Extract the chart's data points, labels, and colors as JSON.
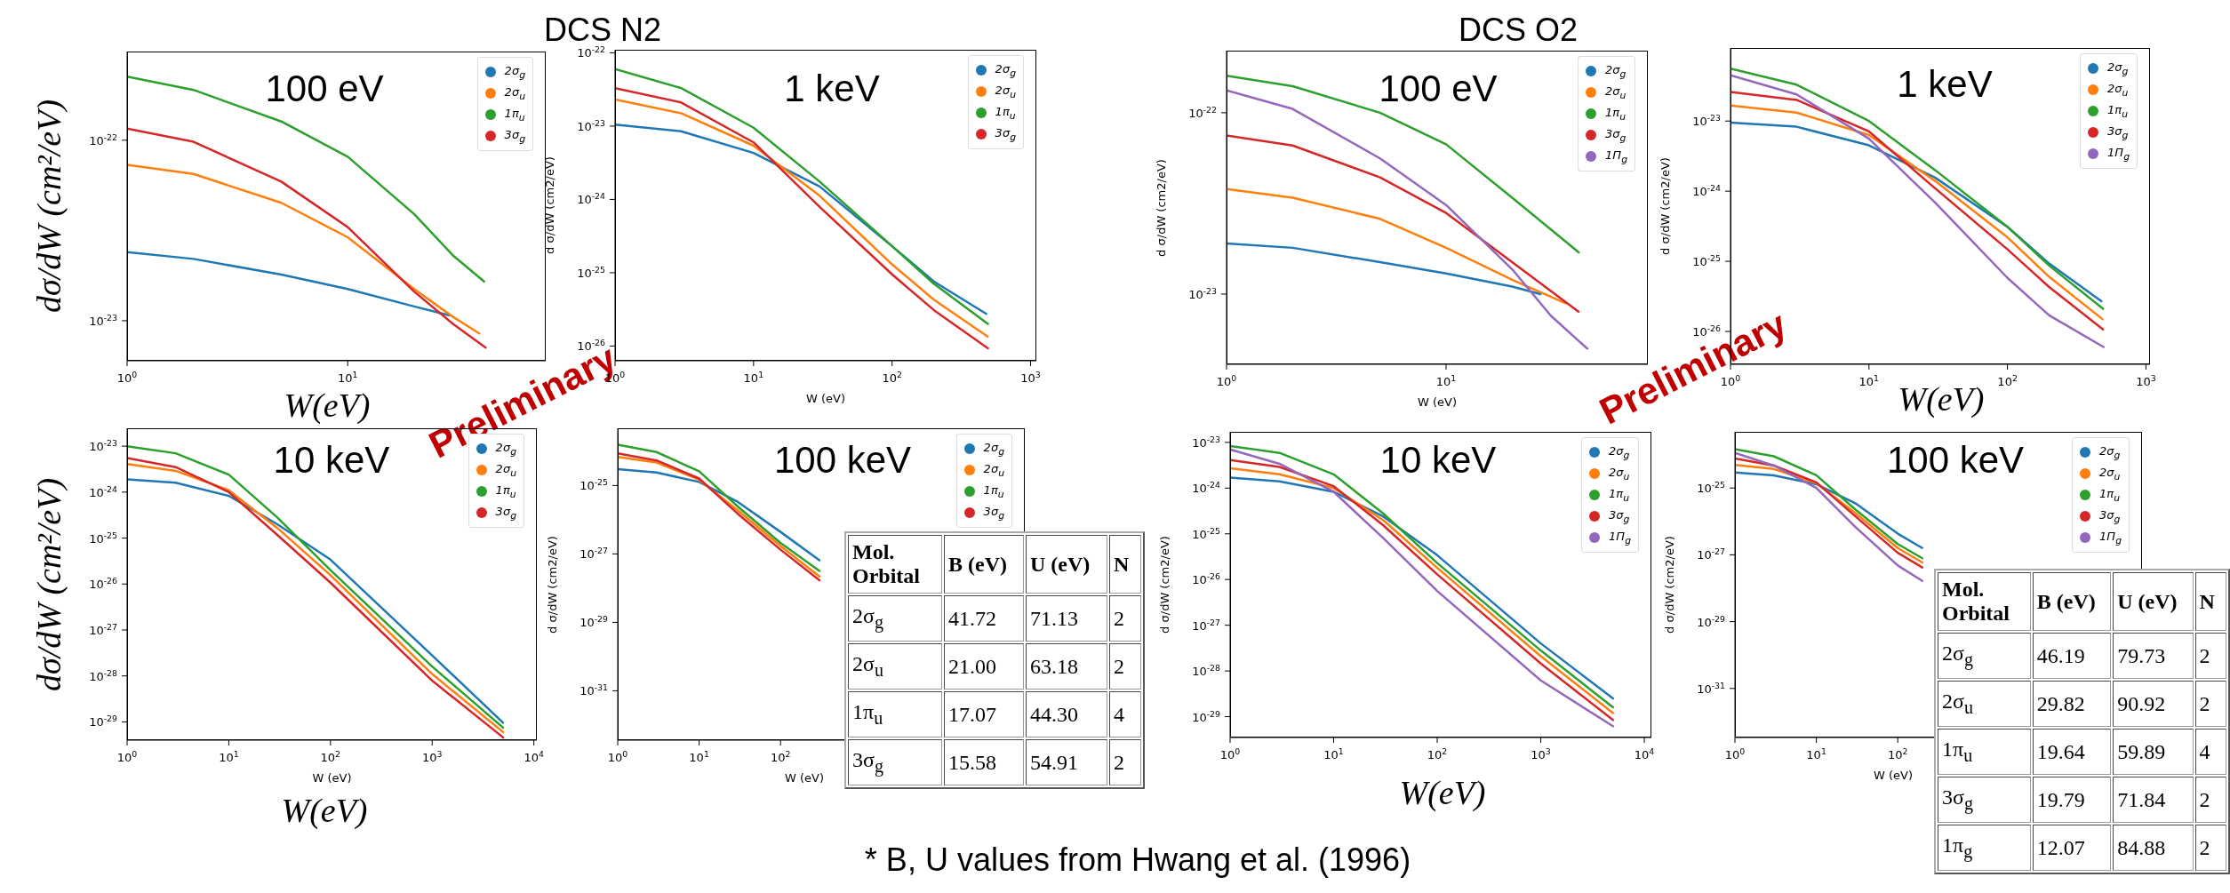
{
  "chart_data": [
    {
      "type": "line",
      "title": "100 eV",
      "xlabel": "W(eV)",
      "ylabel": "dσ/dW (cm²/eV)",
      "log": "xy",
      "legend": "top right",
      "annotations": [
        "DCS N2",
        "Preliminary"
      ],
      "xlim": [
        1,
        79
      ],
      "xticks": [
        {
          "value": 1,
          "label": "10$^{0}$"
        },
        {
          "value": 10,
          "label": "10$^{1}$"
        }
      ],
      "ylim": [
        6e-24,
        3.1e-22
      ],
      "yticks": [
        {
          "value": 1e-22,
          "label": "10$^{-22}$"
        },
        {
          "value": 1e-23,
          "label": "10$^{-23}$"
        }
      ],
      "series": [
        {
          "name": "2σ$_{g}$",
          "color": "#1f77b4",
          "x": [
            1,
            2,
            5,
            10,
            20,
            29
          ],
          "values": [
            2.4e-23,
            2.2e-23,
            1.8e-23,
            1.5e-23,
            1.2e-23,
            1.07e-23
          ]
        },
        {
          "name": "2σ$_{u}$",
          "color": "#ff7f0e",
          "x": [
            1,
            2,
            5,
            10,
            20,
            30,
            39.5
          ],
          "values": [
            7.3e-23,
            6.5e-23,
            4.5e-23,
            2.9e-23,
            1.5e-23,
            1.05e-23,
            8.5e-24
          ]
        },
        {
          "name": "1π$_{u}$",
          "color": "#2ca02c",
          "x": [
            1,
            2,
            5,
            10,
            20,
            30,
            41.5
          ],
          "values": [
            2.25e-22,
            1.9e-22,
            1.27e-22,
            8.1e-23,
            3.9e-23,
            2.3e-23,
            1.65e-23
          ]
        },
        {
          "name": "3σ$_{g}$",
          "color": "#d62728",
          "x": [
            1,
            2,
            5,
            10,
            20,
            30,
            42.2
          ],
          "values": [
            1.16e-22,
            9.8e-23,
            5.9e-23,
            3.3e-23,
            1.45e-23,
            9.6e-24,
            7.1e-24
          ]
        }
      ]
    },
    {
      "type": "line",
      "title": "1 keV",
      "xlabel": "W (eV)",
      "ylabel": "d σ/dW (cm2/eV)",
      "log": "xy",
      "legend": "top right",
      "xlim": [
        1,
        1100
      ],
      "xticks": [
        {
          "value": 1,
          "label": "10$^{0}$"
        },
        {
          "value": 10,
          "label": "10$^{1}$"
        },
        {
          "value": 100,
          "label": "10$^{2}$"
        },
        {
          "value": 1000,
          "label": "10$^{3}$"
        }
      ],
      "ylim": [
        6.3e-27,
        1.1e-22
      ],
      "yticks": [
        {
          "value": 1e-22,
          "label": "10$^{-22}$"
        },
        {
          "value": 1e-23,
          "label": "10$^{-23}$"
        },
        {
          "value": 1e-24,
          "label": "10$^{-24}$"
        },
        {
          "value": 1e-25,
          "label": "10$^{-25}$"
        },
        {
          "value": 1e-26,
          "label": "10$^{-26}$"
        }
      ],
      "series": [
        {
          "name": "2σ$_{g}$",
          "color": "#1f77b4",
          "x": [
            1,
            3,
            10,
            30,
            100,
            200,
            479
          ],
          "values": [
            1.05e-23,
            8.5e-24,
            4.3e-24,
            1.5e-24,
            2.3e-25,
            7.6e-26,
            2.75e-26
          ]
        },
        {
          "name": "2σ$_{u}$",
          "color": "#ff7f0e",
          "x": [
            1,
            3,
            10,
            30,
            100,
            200,
            489.5
          ],
          "values": [
            2.3e-23,
            1.5e-23,
            5.4e-24,
            1.12e-24,
            1.3e-25,
            4.3e-26,
            1.35e-26
          ]
        },
        {
          "name": "1π$_{u}$",
          "color": "#2ca02c",
          "x": [
            1,
            3,
            10,
            30,
            100,
            200,
            491.5
          ],
          "values": [
            6e-23,
            3.3e-23,
            9.5e-24,
            1.75e-24,
            2.3e-25,
            7.1e-26,
            2e-26
          ]
        },
        {
          "name": "3σ$_{g}$",
          "color": "#d62728",
          "x": [
            1,
            3,
            10,
            30,
            100,
            200,
            492
          ],
          "values": [
            3.3e-23,
            2.1e-23,
            6e-24,
            7.9e-25,
            9.5e-26,
            3.1e-26,
            9.3e-27
          ]
        }
      ]
    },
    {
      "type": "line",
      "title": "100 eV",
      "xlabel": "W (eV)",
      "ylabel": "d σ/dW (cm2/eV)",
      "log": "xy",
      "legend": "top right",
      "annotations": [
        "DCS O2",
        "Preliminary"
      ],
      "xlim": [
        1,
        83
      ],
      "xticks": [
        {
          "value": 1,
          "label": "10$^{0}$"
        },
        {
          "value": 10,
          "label": "10$^{1}$"
        }
      ],
      "ylim": [
        4.1e-24,
        2.2e-22
      ],
      "yticks": [
        {
          "value": 1e-22,
          "label": "10$^{-22}$"
        },
        {
          "value": 1e-23,
          "label": "10$^{-23}$"
        }
      ],
      "series": [
        {
          "name": "2σ$_{g}$",
          "color": "#1f77b4",
          "x": [
            1,
            2,
            5,
            10,
            20,
            26.9
          ],
          "values": [
            1.9e-23,
            1.8e-23,
            1.5e-23,
            1.3e-23,
            1.1e-23,
            1e-23
          ]
        },
        {
          "name": "2σ$_{u}$",
          "color": "#ff7f0e",
          "x": [
            1,
            2,
            5,
            10,
            20,
            35.1
          ],
          "values": [
            3.8e-23,
            3.4e-23,
            2.6e-23,
            1.8e-23,
            1.2e-23,
            8.9e-24
          ]
        },
        {
          "name": "1π$_{u}$",
          "color": "#2ca02c",
          "x": [
            1,
            2,
            5,
            10,
            20,
            40.2
          ],
          "values": [
            1.6e-22,
            1.4e-22,
            1e-22,
            6.7e-23,
            3.4e-23,
            1.7e-23
          ]
        },
        {
          "name": "3σ$_{g}$",
          "color": "#d62728",
          "x": [
            1,
            2,
            5,
            10,
            20,
            40.1
          ],
          "values": [
            7.5e-23,
            6.6e-23,
            4.4e-23,
            2.8e-23,
            1.5e-23,
            8e-24
          ]
        },
        {
          "name": "1Π$_{g}$",
          "color": "#9467bd",
          "x": [
            1,
            2,
            5,
            10,
            20,
            30,
            44
          ],
          "values": [
            1.33e-22,
            1.05e-22,
            5.6e-23,
            3.1e-23,
            1.37e-23,
            7.6e-24,
            5e-24
          ]
        }
      ]
    },
    {
      "type": "line",
      "title": "1 keV",
      "xlabel": "W(eV)",
      "ylabel": "d σ/dW (cm2/eV)",
      "log": "xy",
      "legend": "top right",
      "xlim": [
        1,
        1070
      ],
      "xticks": [
        {
          "value": 1,
          "label": "10$^{0}$"
        },
        {
          "value": 10,
          "label": "10$^{1}$"
        },
        {
          "value": 100,
          "label": "10$^{2}$"
        },
        {
          "value": 1000,
          "label": "10$^{3}$"
        }
      ],
      "ylim": [
        3.4e-27,
        1.1e-22
      ],
      "yticks": [
        {
          "value": 1e-23,
          "label": "10$^{-23}$"
        },
        {
          "value": 1e-24,
          "label": "10$^{-24}$"
        },
        {
          "value": 1e-25,
          "label": "10$^{-25}$"
        },
        {
          "value": 1e-26,
          "label": "10$^{-26}$"
        }
      ],
      "series": [
        {
          "name": "2σ$_{g}$",
          "color": "#1f77b4",
          "x": [
            1,
            3,
            10,
            30,
            100,
            200,
            477
          ],
          "values": [
            9.5e-24,
            8.3e-24,
            4.5e-24,
            1.56e-24,
            3.1e-25,
            9.3e-26,
            2.7e-26
          ]
        },
        {
          "name": "2σ$_{u}$",
          "color": "#ff7f0e",
          "x": [
            1,
            3,
            10,
            30,
            100,
            200,
            485
          ],
          "values": [
            1.66e-23,
            1.32e-23,
            6.3e-24,
            1.4e-24,
            2.2e-25,
            6e-26,
            1.5e-26
          ]
        },
        {
          "name": "1π$_{u}$",
          "color": "#2ca02c",
          "x": [
            1,
            3,
            10,
            30,
            100,
            200,
            490
          ],
          "values": [
            5.6e-23,
            3.3e-23,
            1e-23,
            2e-24,
            3.1e-25,
            8.7e-26,
            2.1e-26
          ]
        },
        {
          "name": "3σ$_{g}$",
          "color": "#d62728",
          "x": [
            1,
            3,
            10,
            30,
            100,
            200,
            490
          ],
          "values": [
            2.6e-23,
            2e-23,
            7.1e-24,
            1.1e-24,
            1.48e-25,
            4.3e-26,
            1.07e-26
          ]
        },
        {
          "name": "1Π$_{g}$",
          "color": "#9467bd",
          "x": [
            1,
            3,
            10,
            30,
            100,
            200,
            494
          ],
          "values": [
            4.5e-23,
            2.4e-23,
            5.6e-24,
            6.9e-25,
            5.8e-26,
            1.7e-26,
            6e-27
          ]
        }
      ]
    },
    {
      "type": "line",
      "title": "10 keV",
      "xlabel": "W (eV)",
      "ylabel": "dσ/dW (cm²/eV)",
      "log": "xy",
      "legend": "top right",
      "annotations": [
        "W(eV)"
      ],
      "xlim": [
        1,
        10700
      ],
      "xticks": [
        {
          "value": 1,
          "label": "10$^{0}$"
        },
        {
          "value": 10,
          "label": "10$^{1}$"
        },
        {
          "value": 100,
          "label": "10$^{2}$"
        },
        {
          "value": 1000,
          "label": "10$^{3}$"
        },
        {
          "value": 10000,
          "label": "10$^{4}$"
        }
      ],
      "ylim": [
        4e-30,
        2.45e-23
      ],
      "yticks": [
        {
          "value": 1e-23,
          "label": "10$^{-23}$"
        },
        {
          "value": 1e-24,
          "label": "10$^{-24}$"
        },
        {
          "value": 1e-25,
          "label": "10$^{-25}$"
        },
        {
          "value": 1e-26,
          "label": "10$^{-26}$"
        },
        {
          "value": 1e-27,
          "label": "10$^{-27}$"
        },
        {
          "value": 1e-28,
          "label": "10$^{-28}$"
        },
        {
          "value": 1e-29,
          "label": "10$^{-29}$"
        }
      ],
      "series": [
        {
          "name": "2σ$_{g}$",
          "color": "#1f77b4",
          "x": [
            1,
            3,
            10,
            30,
            100,
            1000,
            4980
          ],
          "values": [
            1.9e-24,
            1.6e-24,
            8.3e-25,
            2e-25,
            3.4e-26,
            2.8e-28,
            9.6e-30
          ]
        },
        {
          "name": "2σ$_{u}$",
          "color": "#ff7f0e",
          "x": [
            1,
            3,
            10,
            30,
            100,
            1000,
            4980
          ],
          "values": [
            4.1e-24,
            2.9e-24,
            1.1e-24,
            1.66e-25,
            1.55e-26,
            1.1e-28,
            6e-30
          ]
        },
        {
          "name": "1π$_{u}$",
          "color": "#2ca02c",
          "x": [
            1,
            3,
            10,
            30,
            100,
            1000,
            4980
          ],
          "values": [
            1e-23,
            7e-24,
            2.4e-24,
            2.8e-25,
            2e-26,
            1.6e-28,
            7.5e-30
          ]
        },
        {
          "name": "3σ$_{g}$",
          "color": "#d62728",
          "x": [
            1,
            3,
            10,
            30,
            100,
            1000,
            4980
          ],
          "values": [
            5.5e-24,
            3.5e-24,
            1e-24,
            1.17e-25,
            1.07e-26,
            7.9e-29,
            4.6e-30
          ]
        }
      ]
    },
    {
      "type": "line",
      "title": "100 keV",
      "xlabel": "W (eV)",
      "ylabel": "d σ/dW (cm2/eV)",
      "log": "xy",
      "legend": "top right",
      "xlim": [
        1,
        100000
      ],
      "xticks": [
        {
          "value": 1,
          "label": "10$^{0}$"
        },
        {
          "value": 10,
          "label": "10$^{1}$"
        },
        {
          "value": 100,
          "label": "10$^{2}$"
        }
      ],
      "ylim": [
        3.6e-33,
        4.7e-24
      ],
      "yticks": [
        {
          "value": 1e-25,
          "label": "10$^{-25}$"
        },
        {
          "value": 1e-27,
          "label": "10$^{-27}$"
        },
        {
          "value": 1e-29,
          "label": "10$^{-29}$"
        },
        {
          "value": 1e-31,
          "label": "10$^{-31}$"
        }
      ],
      "series": [
        {
          "name": "2σ$_{g}$",
          "color": "#1f77b4",
          "x": [
            1,
            3,
            10,
            30,
            100,
            300
          ],
          "values": [
            3e-25,
            2.4e-25,
            1.27e-25,
            3.3e-26,
            4.4e-27,
            6.5e-28
          ]
        },
        {
          "name": "2σ$_{u}$",
          "color": "#ff7f0e",
          "x": [
            1,
            3,
            10,
            30,
            100,
            300
          ],
          "values": [
            6.8e-25,
            4.7e-25,
            1.47e-25,
            1.87e-26,
            1.7e-27,
            2.2e-28
          ]
        },
        {
          "name": "1π$_{u}$",
          "color": "#2ca02c",
          "x": [
            1,
            3,
            10,
            30,
            100,
            300
          ],
          "values": [
            1.55e-24,
            9.5e-25,
            2.6e-25,
            2.4e-26,
            2.1e-27,
            3.2e-28
          ]
        },
        {
          "name": "3σ$_{g}$",
          "color": "#d62728",
          "x": [
            1,
            3,
            10,
            30,
            100,
            300
          ],
          "values": [
            8.7e-25,
            5.4e-25,
            1.6e-25,
            1.47e-26,
            1.33e-27,
            1.7e-28
          ]
        }
      ]
    },
    {
      "type": "other",
      "annotations": [
        "* B, U values from Hwang et al. (1996)"
      ],
      "categories": [
        "Mol. Orbital",
        "B (eV)",
        "U (eV)",
        "N"
      ],
      "y_categories": [
        "2σ$_{g}$",
        "2σ$_{u}$",
        "1π$_{u}$",
        "3σ$_{g}$"
      ],
      "cell_labels": [
        [
          "41.72",
          "71.13",
          "2"
        ],
        [
          "21.00",
          "63.18",
          "2"
        ],
        [
          "17.07",
          "44.30",
          "4"
        ],
        [
          "15.58",
          "54.91",
          "2"
        ]
      ]
    },
    {
      "type": "line",
      "title": "10 keV",
      "xlabel": "W(eV)",
      "ylabel": "d σ/dW (cm2/eV)",
      "log": "xy",
      "legend": "top right",
      "xlim": [
        1,
        11700
      ],
      "xticks": [
        {
          "value": 1,
          "label": "10$^{0}$"
        },
        {
          "value": 10,
          "label": "10$^{1}$"
        },
        {
          "value": 100,
          "label": "10$^{2}$"
        },
        {
          "value": 1000,
          "label": "10$^{3}$"
        },
        {
          "value": 10000,
          "label": "10$^{4}$"
        }
      ],
      "ylim": [
        3.5e-30,
        1.7e-23
      ],
      "yticks": [
        {
          "value": 1e-23,
          "label": "10$^{-23}$"
        },
        {
          "value": 1e-24,
          "label": "10$^{-24}$"
        },
        {
          "value": 1e-25,
          "label": "10$^{-25}$"
        },
        {
          "value": 1e-26,
          "label": "10$^{-26}$"
        },
        {
          "value": 1e-27,
          "label": "10$^{-27}$"
        },
        {
          "value": 1e-28,
          "label": "10$^{-28}$"
        },
        {
          "value": 1e-29,
          "label": "10$^{-29}$"
        }
      ],
      "series": [
        {
          "name": "2σ$_{g}$",
          "color": "#1f77b4",
          "x": [
            1,
            3,
            10,
            30,
            100,
            1000,
            4980
          ],
          "values": [
            1.7e-24,
            1.4e-24,
            8.3e-25,
            2.4e-25,
            3.4e-26,
            4e-28,
            2.5e-29
          ]
        },
        {
          "name": "2σ$_{u}$",
          "color": "#ff7f0e",
          "x": [
            1,
            3,
            10,
            30,
            100,
            1000,
            4980
          ],
          "values": [
            2.7e-24,
            2e-24,
            1e-24,
            2e-25,
            1.8e-26,
            2.1e-28,
            1.2e-29
          ]
        },
        {
          "name": "1π$_{u}$",
          "color": "#2ca02c",
          "x": [
            1,
            3,
            10,
            30,
            100,
            1000,
            4980
          ],
          "values": [
            8.3e-24,
            5.9e-24,
            2e-24,
            2.8e-25,
            2.3e-26,
            2.8e-28,
            1.6e-29
          ]
        },
        {
          "name": "3σ$_{g}$",
          "color": "#d62728",
          "x": [
            1,
            3,
            10,
            30,
            100,
            1000,
            4980
          ],
          "values": [
            4.1e-24,
            2.9e-24,
            1.1e-24,
            1.55e-25,
            1.3e-26,
            1.45e-28,
            8.5e-30
          ]
        },
        {
          "name": "1Π$_{g}$",
          "color": "#9467bd",
          "x": [
            1,
            3,
            10,
            30,
            100,
            1000,
            4980
          ],
          "values": [
            7e-24,
            3.4e-24,
            8.3e-25,
            8.1e-26,
            5.6e-27,
            6.2e-29,
            6.2e-30
          ]
        }
      ]
    },
    {
      "type": "line",
      "title": "100 keV",
      "xlabel": "W (eV)",
      "ylabel": "d σ/dW (cm2/eV)",
      "log": "xy",
      "legend": "top right",
      "xlim": [
        1,
        100000
      ],
      "xticks": [
        {
          "value": 1,
          "label": "10$^{0}$"
        },
        {
          "value": 10,
          "label": "10$^{1}$"
        },
        {
          "value": 100,
          "label": "10$^{2}$"
        }
      ],
      "ylim": [
        3.4e-33,
        4.8e-24
      ],
      "yticks": [
        {
          "value": 1e-25,
          "label": "10$^{-25}$"
        },
        {
          "value": 1e-27,
          "label": "10$^{-27}$"
        },
        {
          "value": 1e-29,
          "label": "10$^{-29}$"
        },
        {
          "value": 1e-31,
          "label": "10$^{-31}$"
        }
      ],
      "series": [
        {
          "name": "2σ$_{g}$",
          "color": "#1f77b4",
          "x": [
            1,
            3,
            10,
            30,
            100,
            200
          ],
          "values": [
            2.9e-25,
            2.4e-25,
            1.3e-25,
            3.5e-26,
            4.3e-27,
            1.6e-27
          ]
        },
        {
          "name": "2σ$_{u}$",
          "color": "#ff7f0e",
          "x": [
            1,
            3,
            10,
            30,
            100,
            200
          ],
          "values": [
            4.9e-25,
            3.7e-25,
            1.4e-25,
            1.8e-26,
            1.6e-27,
            5.9e-28
          ]
        },
        {
          "name": "1π$_{u}$",
          "color": "#2ca02c",
          "x": [
            1,
            3,
            10,
            30,
            100,
            200
          ],
          "values": [
            1.45e-24,
            8.9e-25,
            2.4e-25,
            2.3e-26,
            2.1e-27,
            7.9e-28
          ]
        },
        {
          "name": "3σ$_{g}$",
          "color": "#d62728",
          "x": [
            1,
            3,
            10,
            30,
            100,
            200
          ],
          "values": [
            7.6e-25,
            4.7e-25,
            1.47e-25,
            1.44e-26,
            1.15e-27,
            4.2e-28
          ]
        },
        {
          "name": "1Π$_{g}$",
          "color": "#9467bd",
          "x": [
            1,
            3,
            10,
            30,
            100,
            200
          ],
          "values": [
            1.12e-24,
            4.7e-25,
            1e-25,
            6.9e-27,
            4.8e-28,
            1.66e-28
          ]
        }
      ]
    },
    {
      "type": "other",
      "categories": [
        "Mol. Orbital",
        "B (eV)",
        "U (eV)",
        "N"
      ],
      "y_categories": [
        "2σ$_{g}$",
        "2σ$_{u}$",
        "1π$_{u}$",
        "3σ$_{g}$",
        "1π$_{g}$"
      ],
      "cell_labels": [
        [
          "46.19",
          "79.73",
          "2"
        ],
        [
          "29.82",
          "90.92",
          "2"
        ],
        [
          "19.64",
          "59.89",
          "4"
        ],
        [
          "19.79",
          "71.84",
          "2"
        ],
        [
          "12.07",
          "84.88",
          "2"
        ]
      ]
    }
  ]
}
